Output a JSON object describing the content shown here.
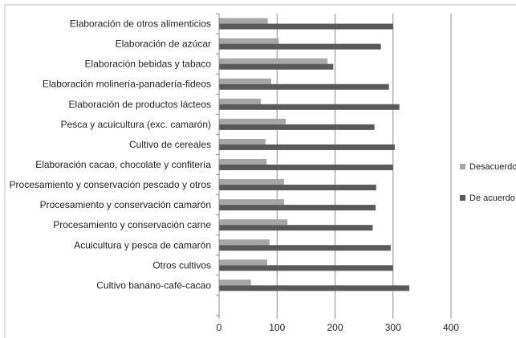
{
  "chart_data": {
    "type": "bar",
    "orientation": "horizontal",
    "categories": [
      "Elaboración de otros alimenticios",
      "Elaboración de azúcar",
      "Elaboración bebidas y tabaco",
      "Elaboración molinería-panadería-fideos",
      "Elaboración de productos lácteos",
      "Pesca y acuicultura (exc. camarón)",
      "Cultivo de cereales",
      "Elaboración cacao, chocolate y confitería",
      "Procesamiento y conservación pescado y otros",
      "Procesamiento y conservación camarón",
      "Procesamiento y conservación carne",
      "Acuicultura y pesca de camarón",
      "Otros cultivos",
      "Cultivo banano-café-cacao"
    ],
    "series": [
      {
        "name": "Desacuerdo",
        "color": "#a6a6a6",
        "values": [
          84,
          103,
          187,
          90,
          72,
          115,
          80,
          82,
          112,
          112,
          118,
          87,
          83,
          55
        ]
      },
      {
        "name": "De acuerdo",
        "color": "#595959",
        "values": [
          300,
          279,
          197,
          293,
          311,
          268,
          303,
          300,
          271,
          270,
          265,
          296,
          300,
          328
        ]
      }
    ],
    "xlim": [
      0,
      400
    ],
    "xticks": [
      "0",
      "100",
      "200",
      "300",
      "400"
    ],
    "grid": "vertical",
    "legend_position": "right"
  }
}
